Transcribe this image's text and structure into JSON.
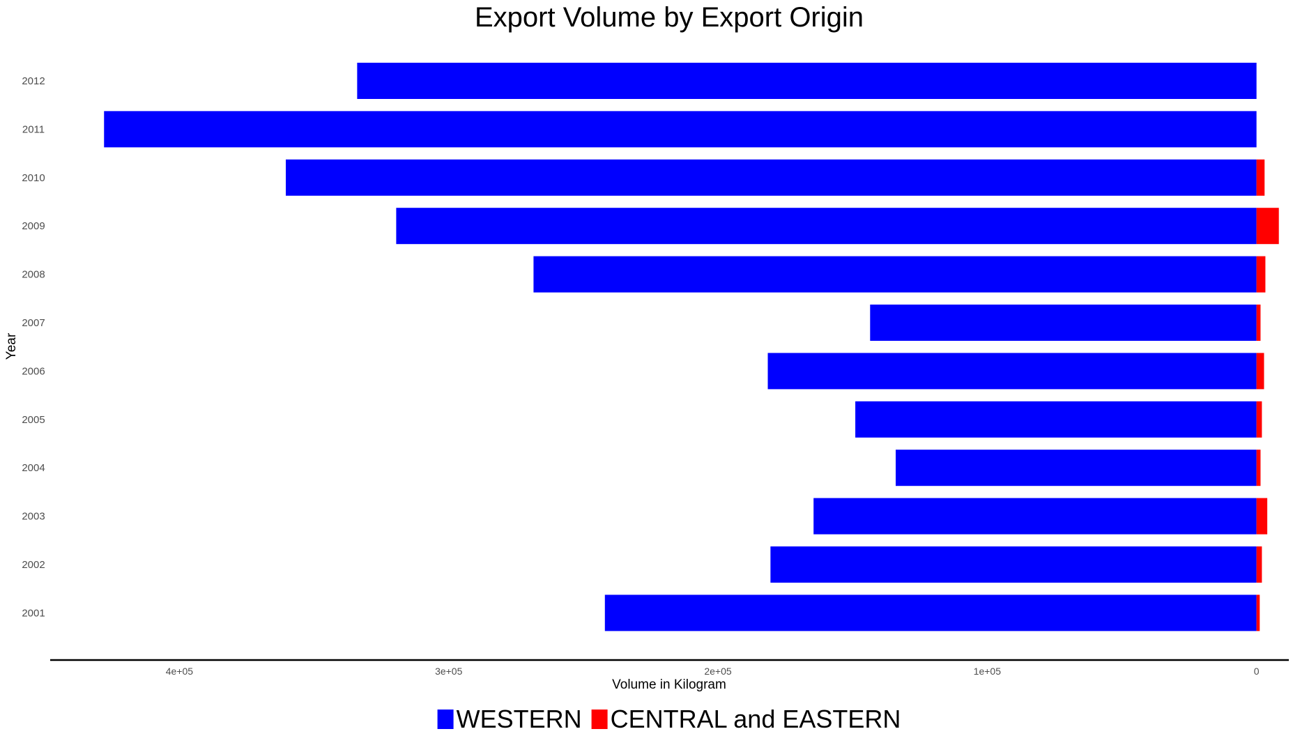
{
  "chart_data": {
    "type": "bar",
    "orientation": "horizontal",
    "stacked": true,
    "title": "Export Volume by Export Origin",
    "xlabel": "Volume in Kilogram",
    "ylabel": "Year",
    "x_reversed": true,
    "xlim": [
      -12000,
      448000
    ],
    "xticks": [
      400000,
      300000,
      200000,
      100000,
      0
    ],
    "xtick_labels": [
      "4e+05",
      "3e+05",
      "2e+05",
      "1e+05",
      "0"
    ],
    "categories": [
      "2001",
      "2002",
      "2003",
      "2004",
      "2005",
      "2006",
      "2007",
      "2008",
      "2009",
      "2010",
      "2011",
      "2012"
    ],
    "series": [
      {
        "name": "WESTERN",
        "color": "#0000FF",
        "values": [
          242000,
          180500,
          164500,
          134000,
          149000,
          181500,
          143500,
          268500,
          319500,
          360500,
          428000,
          334000
        ]
      },
      {
        "name": "CENTRAL and EASTERN",
        "color": "#FF0000",
        "values": [
          1200,
          2000,
          4000,
          1500,
          2000,
          2800,
          1500,
          3300,
          8300,
          3000,
          0,
          0
        ]
      }
    ],
    "grid": false,
    "legend_position": "bottom"
  }
}
